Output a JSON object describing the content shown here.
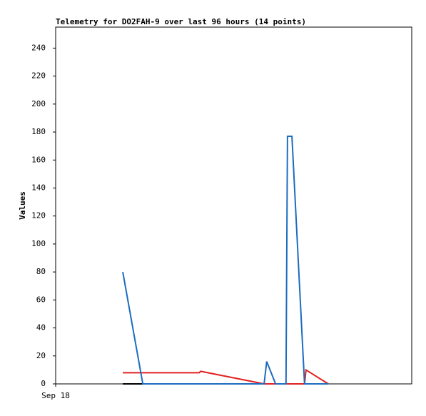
{
  "chart_data": {
    "type": "line",
    "title": "Telemetry for DO2FAH-9 over last 96 hours (14 points)",
    "y_label": "Values",
    "xlim": [
      0,
      96
    ],
    "xticks": [
      {
        "value": 0,
        "label": "Sep 18"
      }
    ],
    "ylim": [
      0,
      255
    ],
    "yticks": [
      0,
      20,
      40,
      60,
      80,
      100,
      120,
      140,
      160,
      180,
      200,
      220,
      240
    ],
    "series": [
      {
        "color": "#000000",
        "x": [
          18.1,
          73.5
        ],
        "values": [
          0,
          0
        ]
      },
      {
        "color": "#e02020",
        "x": [
          18.1,
          38.7,
          39.1,
          56.2,
          67.1,
          67.5,
          73.5
        ],
        "values": [
          8,
          8,
          9,
          0,
          0,
          10,
          0
        ]
      },
      {
        "color": "#1c6cc0",
        "x": [
          18.1,
          23.5,
          56.2,
          56.9,
          59.3,
          62.1,
          62.5,
          63.7,
          67.1,
          73.5
        ],
        "values": [
          80,
          0,
          0,
          16,
          0,
          0,
          177,
          177,
          0,
          0
        ]
      }
    ]
  }
}
